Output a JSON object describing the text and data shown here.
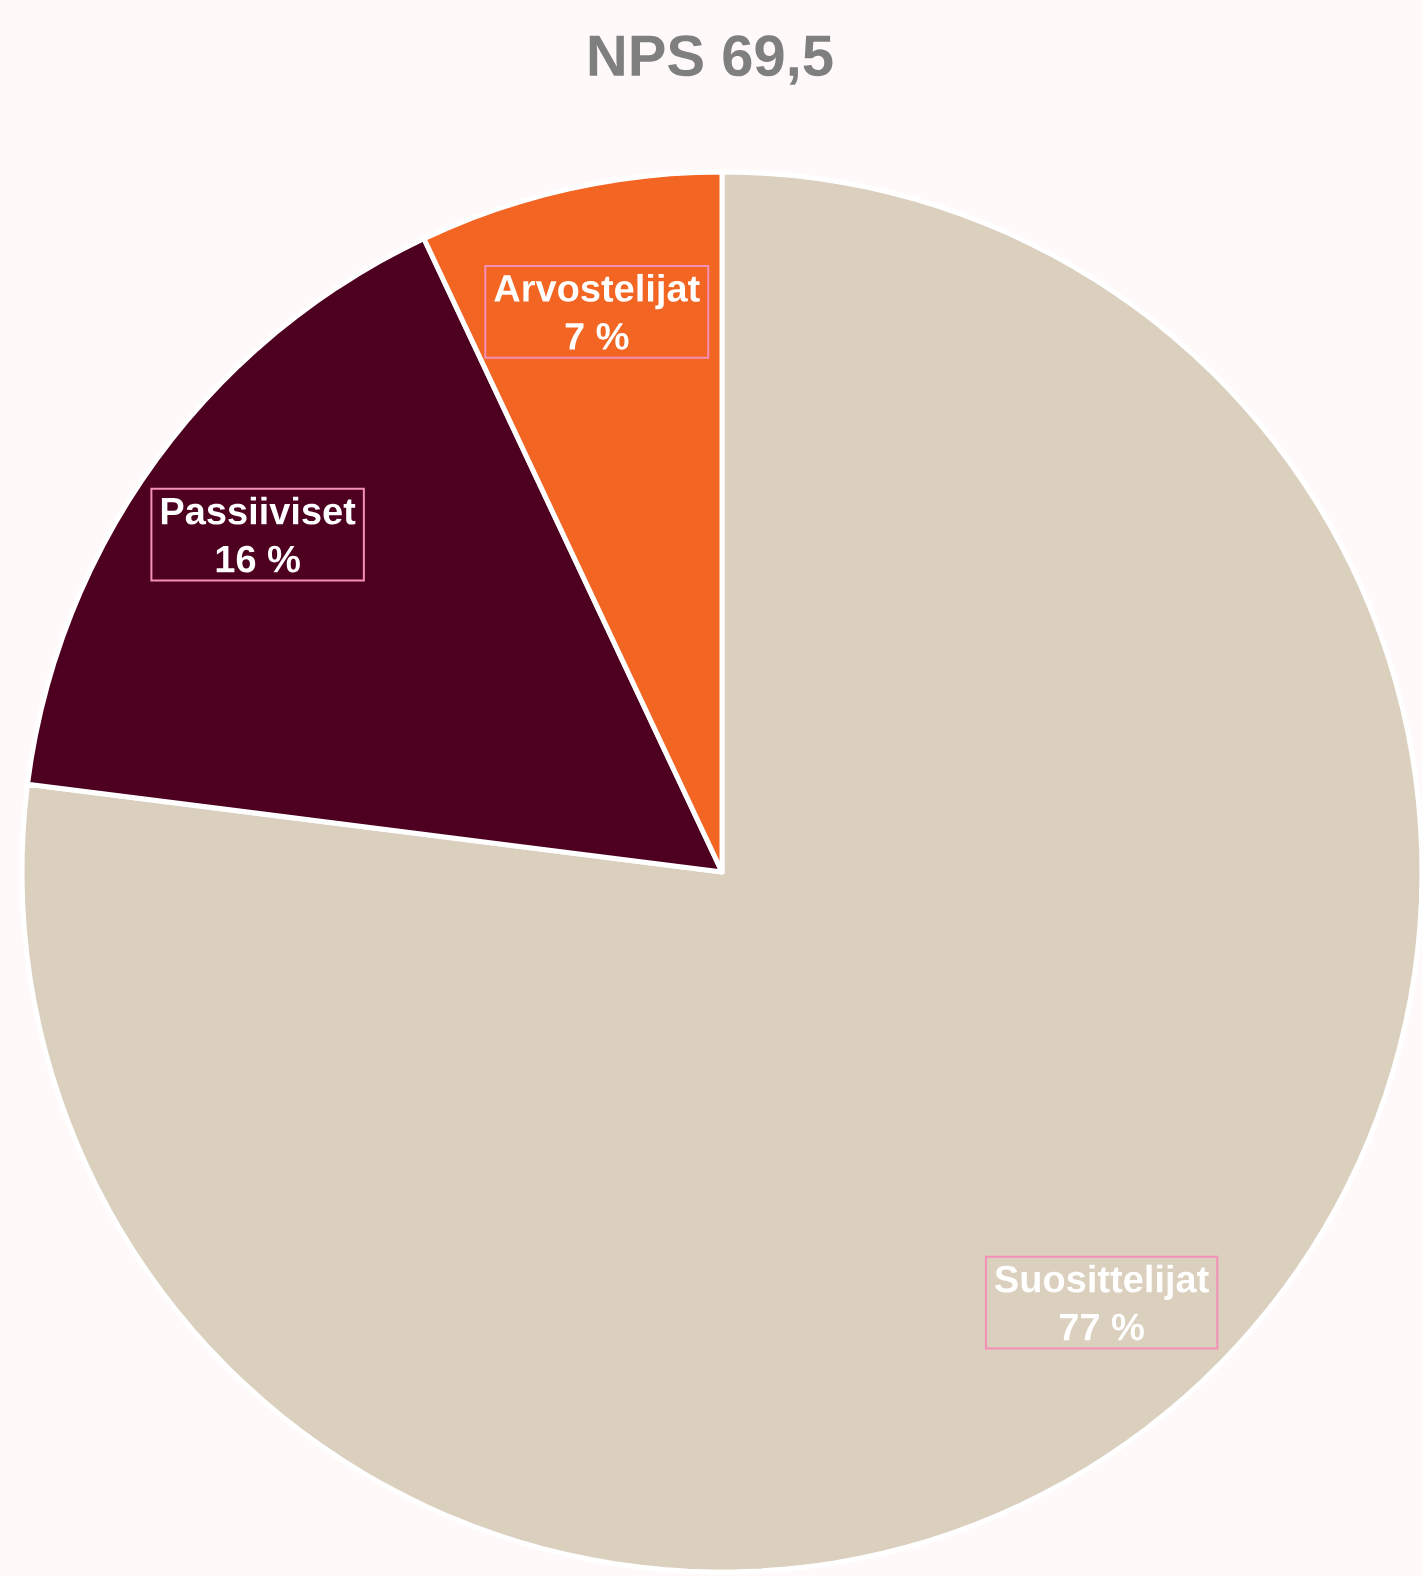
{
  "chart_data": {
    "type": "pie",
    "title": "NPS 69,5",
    "categories": [
      "Suosittelijat",
      "Passiiviset",
      "Arvostelijat"
    ],
    "values": [
      77,
      16,
      7
    ],
    "colors": [
      "#dbcfbe",
      "#4e0020",
      "#f26522"
    ],
    "value_labels": [
      "77 %",
      "16 %",
      "7 %"
    ]
  }
}
